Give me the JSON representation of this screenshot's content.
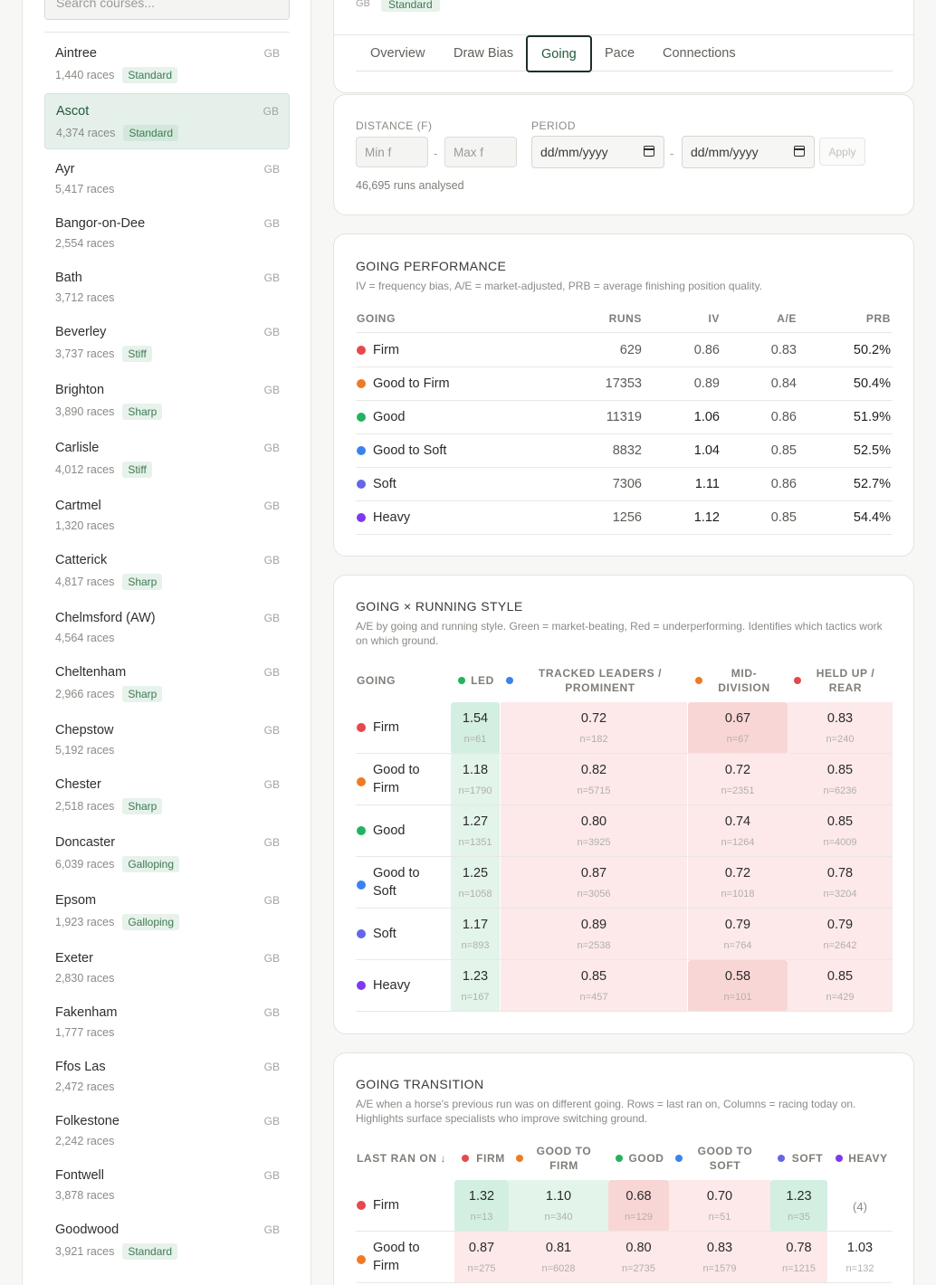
{
  "sidebar": {
    "search_placeholder": "Search courses...",
    "courses": [
      {
        "name": "Aintree",
        "country": "GB",
        "races": "1,440 races",
        "badge": "Standard"
      },
      {
        "name": "Ascot",
        "country": "GB",
        "races": "4,374 races",
        "badge": "Standard",
        "selected": true
      },
      {
        "name": "Ayr",
        "country": "GB",
        "races": "5,417 races",
        "badge": ""
      },
      {
        "name": "Bangor-on-Dee",
        "country": "GB",
        "races": "2,554 races",
        "badge": ""
      },
      {
        "name": "Bath",
        "country": "GB",
        "races": "3,712 races",
        "badge": ""
      },
      {
        "name": "Beverley",
        "country": "GB",
        "races": "3,737 races",
        "badge": "Stiff"
      },
      {
        "name": "Brighton",
        "country": "GB",
        "races": "3,890 races",
        "badge": "Sharp"
      },
      {
        "name": "Carlisle",
        "country": "GB",
        "races": "4,012 races",
        "badge": "Stiff"
      },
      {
        "name": "Cartmel",
        "country": "GB",
        "races": "1,320 races",
        "badge": ""
      },
      {
        "name": "Catterick",
        "country": "GB",
        "races": "4,817 races",
        "badge": "Sharp"
      },
      {
        "name": "Chelmsford (AW)",
        "country": "GB",
        "races": "4,564 races",
        "badge": ""
      },
      {
        "name": "Cheltenham",
        "country": "GB",
        "races": "2,966 races",
        "badge": "Sharp"
      },
      {
        "name": "Chepstow",
        "country": "GB",
        "races": "5,192 races",
        "badge": ""
      },
      {
        "name": "Chester",
        "country": "GB",
        "races": "2,518 races",
        "badge": "Sharp"
      },
      {
        "name": "Doncaster",
        "country": "GB",
        "races": "6,039 races",
        "badge": "Galloping"
      },
      {
        "name": "Epsom",
        "country": "GB",
        "races": "1,923 races",
        "badge": "Galloping"
      },
      {
        "name": "Exeter",
        "country": "GB",
        "races": "2,830 races",
        "badge": ""
      },
      {
        "name": "Fakenham",
        "country": "GB",
        "races": "1,777 races",
        "badge": ""
      },
      {
        "name": "Ffos Las",
        "country": "GB",
        "races": "2,472 races",
        "badge": ""
      },
      {
        "name": "Folkestone",
        "country": "GB",
        "races": "2,242 races",
        "badge": ""
      },
      {
        "name": "Fontwell",
        "country": "GB",
        "races": "3,878 races",
        "badge": ""
      },
      {
        "name": "Goodwood",
        "country": "GB",
        "races": "3,921 races",
        "badge": "Standard"
      }
    ]
  },
  "header": {
    "country": "GB",
    "track_badge": "Standard",
    "tabs": [
      "Overview",
      "Draw Bias",
      "Going",
      "Pace",
      "Connections"
    ],
    "active_tab": "Going"
  },
  "filters": {
    "distance_label": "DISTANCE (F)",
    "min_placeholder": "Min f",
    "max_placeholder": "Max f",
    "period_label": "PERIOD",
    "date_placeholder": "dd/mm/yyyy",
    "separator": "-",
    "apply_label": "Apply",
    "runs_note": "46,695 runs analysed"
  },
  "colors": {
    "Firm": "#e5484d",
    "Good to Firm": "#f07a24",
    "Good": "#22b35e",
    "Good to Soft": "#3b82f0",
    "Soft": "#6366e8",
    "Heavy": "#7c3aed",
    "positive_strong": "#d3efe1",
    "positive_light": "#e3f4ea",
    "negative_strong": "#f9d6d6",
    "negative_light": "#fde9e9"
  },
  "performance": {
    "title": "GOING PERFORMANCE",
    "subtitle": "IV = frequency bias, A/E = market-adjusted, PRB = average finishing position quality.",
    "headers": [
      "GOING",
      "RUNS",
      "IV",
      "A/E",
      "PRB"
    ],
    "rows": [
      {
        "going": "Firm",
        "runs": "629",
        "iv": "0.86",
        "ae": "0.83",
        "prb": "50.2%"
      },
      {
        "going": "Good to Firm",
        "runs": "17353",
        "iv": "0.89",
        "ae": "0.84",
        "prb": "50.4%"
      },
      {
        "going": "Good",
        "runs": "11319",
        "iv": "1.06",
        "ae": "0.86",
        "prb": "51.9%"
      },
      {
        "going": "Good to Soft",
        "runs": "8832",
        "iv": "1.04",
        "ae": "0.85",
        "prb": "52.5%"
      },
      {
        "going": "Soft",
        "runs": "7306",
        "iv": "1.11",
        "ae": "0.86",
        "prb": "52.7%"
      },
      {
        "going": "Heavy",
        "runs": "1256",
        "iv": "1.12",
        "ae": "0.85",
        "prb": "54.4%"
      }
    ]
  },
  "running_style": {
    "title": "GOING × RUNNING STYLE",
    "subtitle": "A/E by going and running style. Green = market-beating, Red = underperforming. Identifies which tactics work on which ground.",
    "corner": "GOING",
    "columns": [
      {
        "label": "LED",
        "dot": "Good"
      },
      {
        "label": "TRACKED LEADERS / PROMINENT",
        "dot": "Good to Soft"
      },
      {
        "label": "MID-DIVISION",
        "dot": "Good to Firm"
      },
      {
        "label": "HELD UP / REAR",
        "dot": "Firm"
      }
    ],
    "rows": [
      {
        "going": "Firm",
        "cells": [
          [
            "1.54",
            "n=61",
            "ps"
          ],
          [
            "0.72",
            "n=182",
            "nl"
          ],
          [
            "0.67",
            "n=67",
            "ns"
          ],
          [
            "0.83",
            "n=240",
            "nl"
          ]
        ]
      },
      {
        "going": "Good to Firm",
        "cells": [
          [
            "1.18",
            "n=1790",
            "pl"
          ],
          [
            "0.82",
            "n=5715",
            "nl"
          ],
          [
            "0.72",
            "n=2351",
            "nl"
          ],
          [
            "0.85",
            "n=6236",
            "nl"
          ]
        ]
      },
      {
        "going": "Good",
        "cells": [
          [
            "1.27",
            "n=1351",
            "pl"
          ],
          [
            "0.80",
            "n=3925",
            "nl"
          ],
          [
            "0.74",
            "n=1264",
            "nl"
          ],
          [
            "0.85",
            "n=4009",
            "nl"
          ]
        ]
      },
      {
        "going": "Good to Soft",
        "cells": [
          [
            "1.25",
            "n=1058",
            "pl"
          ],
          [
            "0.87",
            "n=3056",
            "nl"
          ],
          [
            "0.72",
            "n=1018",
            "nl"
          ],
          [
            "0.78",
            "n=3204",
            "nl"
          ]
        ]
      },
      {
        "going": "Soft",
        "cells": [
          [
            "1.17",
            "n=893",
            "pl"
          ],
          [
            "0.89",
            "n=2538",
            "nl"
          ],
          [
            "0.79",
            "n=764",
            "nl"
          ],
          [
            "0.79",
            "n=2642",
            "nl"
          ]
        ]
      },
      {
        "going": "Heavy",
        "cells": [
          [
            "1.23",
            "n=167",
            "pl"
          ],
          [
            "0.85",
            "n=457",
            "nl"
          ],
          [
            "0.58",
            "n=101",
            "ns"
          ],
          [
            "0.85",
            "n=429",
            "nl"
          ]
        ]
      }
    ]
  },
  "transition": {
    "title": "GOING TRANSITION",
    "subtitle": "A/E when a horse's previous run was on different going. Rows = last ran on, Columns = racing today on. Highlights surface specialists who improve switching ground.",
    "corner": "LAST RAN ON ↓",
    "columns": [
      {
        "label": "FIRM",
        "dot": "Firm"
      },
      {
        "label": "GOOD TO FIRM",
        "dot": "Good to Firm"
      },
      {
        "label": "GOOD",
        "dot": "Good"
      },
      {
        "label": "GOOD TO SOFT",
        "dot": "Good to Soft"
      },
      {
        "label": "SOFT",
        "dot": "Soft"
      },
      {
        "label": "HEAVY",
        "dot": "Heavy"
      }
    ],
    "rows": [
      {
        "going": "Firm",
        "cells": [
          [
            "1.32",
            "n=13",
            "ps"
          ],
          [
            "1.10",
            "n=340",
            "pl"
          ],
          [
            "0.68",
            "n=129",
            "ns"
          ],
          [
            "0.70",
            "n=51",
            "nl"
          ],
          [
            "1.23",
            "n=35",
            "ps"
          ],
          [
            "(4)",
            "",
            "plain"
          ]
        ]
      },
      {
        "going": "Good to Firm",
        "cells": [
          [
            "0.87",
            "n=275",
            "nl"
          ],
          [
            "0.81",
            "n=6028",
            "nl"
          ],
          [
            "0.80",
            "n=2735",
            "nl"
          ],
          [
            "0.83",
            "n=1579",
            "nl"
          ],
          [
            "0.78",
            "n=1215",
            "nl"
          ],
          [
            "1.03",
            "n=132",
            "none"
          ]
        ]
      }
    ]
  }
}
